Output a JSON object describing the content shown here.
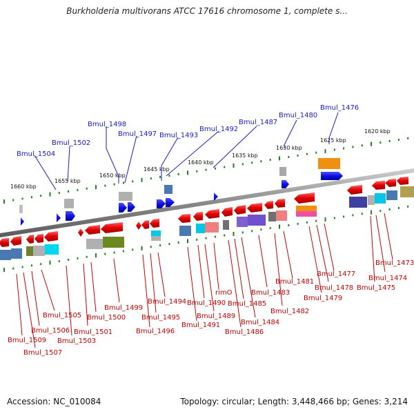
{
  "title": "Burkholderia multivorans ATCC 17616 chromosome 1, complete s...",
  "footer": {
    "accession": "Accession: NC_010084",
    "summary": "Topology: circular; Length: 3,448,466 bp; Genes: 3,214"
  },
  "colors": {
    "forward_gene": "#1010e0",
    "reverse_gene": "#e00000",
    "blue_label": "#1a1ad0",
    "red_label": "#c80000",
    "tick_dot": "#208020",
    "backbone": "#888888"
  },
  "scale_labels": [
    "1620 kbp",
    "1625 kbp",
    "1630 kbp",
    "1635 kbp",
    "1640 kbp",
    "1645 kbp",
    "1650 kbp",
    "1655 kbp",
    "1660 kbp"
  ],
  "forward_labels": [
    "Bmul_1476",
    "Bmul_1480",
    "Bmul_1487",
    "Bmul_1492",
    "Bmul_1493",
    "Bmul_1497",
    "Bmul_1498",
    "Bmul_1502",
    "Bmul_1504"
  ],
  "reverse_labels": [
    "Bmul_1473",
    "Bmul_1474",
    "Bmul_1475",
    "Bmul_1477",
    "Bmul_1478",
    "Bmul_1479",
    "Bmul_1481",
    "Bmul_1482",
    "Bmul_1483",
    "Bmul_1484",
    "Bmul_1485",
    "Bmul_1486",
    "rimO",
    "Bmul_1489",
    "Bmul_1490",
    "Bmul_1491",
    "Bmul_1494",
    "Bmul_1495",
    "Bmul_1496",
    "Bmul_1499",
    "Bmul_1500",
    "Bmul_1501",
    "Bmul_1503",
    "Bmul_1505",
    "Bmul_1506",
    "Bmul_1507",
    "Bmul_1509"
  ]
}
